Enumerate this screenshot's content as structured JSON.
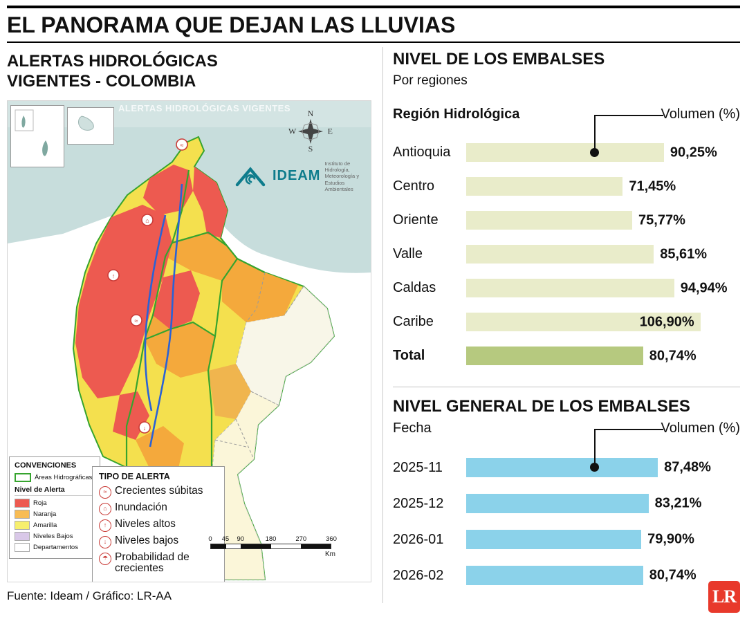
{
  "header": {
    "title": "EL PANORAMA QUE DEJAN LAS LLUVIAS"
  },
  "left": {
    "heading_line1": "ALERTAS HIDROLÓGICAS",
    "heading_line2": "VIGENTES - COLOMBIA",
    "source": "Fuente: Ideam / Gráfico: LR-AA",
    "map": {
      "watermark": "ALERTAS HIDROLÓGICAS VIGENTES",
      "compass": {
        "n": "N",
        "w": "W",
        "e": "E",
        "s": "S"
      },
      "ideam": {
        "name": "IDEAM",
        "desc_lines": [
          "Instituto de Hidrología,",
          "Meteorología y",
          "Estudios Ambientales"
        ]
      },
      "convenciones": {
        "title": "CONVENCIONES",
        "areas_label": "Áreas Hidrográficas",
        "nivel_title": "Nivel de Alerta",
        "levels": [
          {
            "label": "Roja",
            "color": "#ed5a50"
          },
          {
            "label": "Naranja",
            "color": "#f8bc54"
          },
          {
            "label": "Amarilla",
            "color": "#f7ef6d"
          },
          {
            "label": "Niveles Bajos",
            "color": "#d9c8e8"
          },
          {
            "label": "Departamentos",
            "color": "#ffffff"
          }
        ]
      },
      "tipo_alerta": {
        "title": "TIPO DE ALERTA",
        "items": [
          {
            "icon": "crecientes-subitas-icon",
            "glyph": "≈",
            "label": "Crecientes súbitas"
          },
          {
            "icon": "inundacion-icon",
            "glyph": "⌂",
            "label": "Inundación"
          },
          {
            "icon": "niveles-altos-icon",
            "glyph": "↑",
            "label": "Niveles altos"
          },
          {
            "icon": "niveles-bajos-icon",
            "glyph": "↓",
            "label": "Niveles bajos"
          },
          {
            "icon": "probabilidad-crecientes-icon",
            "glyph": "☂",
            "label": "Probabilidad de crecientes"
          }
        ]
      },
      "scalebar": {
        "ticks": [
          "0",
          "45",
          "90",
          "180",
          "270",
          "360"
        ],
        "unit": "Km"
      }
    }
  },
  "chart_data": [
    {
      "type": "bar",
      "orientation": "horizontal",
      "title": "NIVEL DE LOS EMBALSES",
      "subtitle": "Por regiones",
      "ylabel": "Región Hidrológica",
      "xlabel": "Volumen (%)",
      "categories": [
        "Antioquia",
        "Centro",
        "Oriente",
        "Valle",
        "Caldas",
        "Caribe",
        "Total"
      ],
      "values": [
        90.25,
        71.45,
        75.77,
        85.61,
        94.94,
        106.9,
        80.74
      ],
      "value_labels": [
        "90,25%",
        "71,45%",
        "75,77%",
        "85,61%",
        "94,94%",
        "106,90%",
        "80,74%"
      ],
      "xlim": [
        0,
        110
      ],
      "grid": false,
      "legend": "none",
      "bar_color": "#e9ecca",
      "total_category": "Total",
      "total_bar_color": "#b6c97f"
    },
    {
      "type": "bar",
      "orientation": "horizontal",
      "title": "NIVEL GENERAL DE LOS EMBALSES",
      "ylabel": "Fecha",
      "xlabel": "Volumen (%)",
      "categories": [
        "2025-11",
        "2025-12",
        "2026-01",
        "2026-02"
      ],
      "values": [
        87.48,
        83.21,
        79.9,
        80.74
      ],
      "value_labels": [
        "87,48%",
        "83,21%",
        "79,90%",
        "80,74%"
      ],
      "xlim": [
        0,
        110
      ],
      "grid": false,
      "legend": "none",
      "bar_color": "#8bd2ea"
    }
  ],
  "logo": {
    "text": "LR",
    "color": "#e8392b"
  }
}
